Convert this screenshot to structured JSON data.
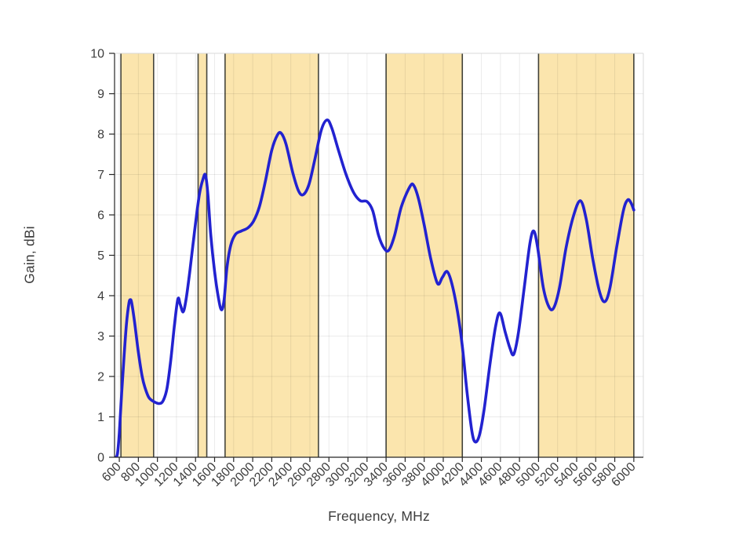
{
  "figure": {
    "xlabel": "Frequency, MHz",
    "ylabel": "Gain, dBi"
  },
  "chart_data": {
    "type": "line",
    "title": "",
    "xlabel": "Frequency, MHz",
    "ylabel": "Gain, dBi",
    "xlim": [
      550,
      6100
    ],
    "ylim": [
      0,
      10
    ],
    "grid": true,
    "legend_position": "none",
    "xticks": [
      600,
      800,
      1000,
      1200,
      1400,
      1600,
      1800,
      2000,
      2200,
      2400,
      2600,
      2800,
      3000,
      3200,
      3400,
      3600,
      3800,
      4000,
      4200,
      4400,
      4600,
      4800,
      5000,
      5200,
      5400,
      5600,
      5800,
      6000
    ],
    "yticks": [
      0,
      1,
      2,
      3,
      4,
      5,
      6,
      7,
      8,
      9,
      10
    ],
    "bands": [
      {
        "name": "band-617-960",
        "from": 617,
        "to": 960
      },
      {
        "name": "band-1427-1518",
        "from": 1427,
        "to": 1518
      },
      {
        "name": "band-1710-2690",
        "from": 1710,
        "to": 2690
      },
      {
        "name": "band-3400-4200",
        "from": 3400,
        "to": 4200
      },
      {
        "name": "band-5000-6000",
        "from": 5000,
        "to": 6000
      }
    ],
    "series": [
      {
        "name": "gain",
        "points": [
          [
            560,
            0.0
          ],
          [
            580,
            0.08
          ],
          [
            600,
            0.6
          ],
          [
            625,
            1.6
          ],
          [
            650,
            2.5
          ],
          [
            675,
            3.3
          ],
          [
            700,
            3.8
          ],
          [
            715,
            3.9
          ],
          [
            730,
            3.82
          ],
          [
            760,
            3.35
          ],
          [
            800,
            2.6
          ],
          [
            840,
            2.0
          ],
          [
            870,
            1.72
          ],
          [
            910,
            1.48
          ],
          [
            960,
            1.38
          ],
          [
            1020,
            1.33
          ],
          [
            1060,
            1.4
          ],
          [
            1100,
            1.7
          ],
          [
            1140,
            2.4
          ],
          [
            1180,
            3.3
          ],
          [
            1215,
            3.92
          ],
          [
            1240,
            3.78
          ],
          [
            1270,
            3.6
          ],
          [
            1300,
            3.9
          ],
          [
            1340,
            4.6
          ],
          [
            1390,
            5.6
          ],
          [
            1440,
            6.5
          ],
          [
            1480,
            6.9
          ],
          [
            1505,
            6.98
          ],
          [
            1530,
            6.5
          ],
          [
            1560,
            5.5
          ],
          [
            1600,
            4.6
          ],
          [
            1640,
            3.95
          ],
          [
            1672,
            3.65
          ],
          [
            1700,
            3.9
          ],
          [
            1730,
            4.7
          ],
          [
            1770,
            5.25
          ],
          [
            1820,
            5.52
          ],
          [
            1880,
            5.6
          ],
          [
            1950,
            5.68
          ],
          [
            2010,
            5.85
          ],
          [
            2070,
            6.2
          ],
          [
            2130,
            6.8
          ],
          [
            2200,
            7.6
          ],
          [
            2260,
            7.98
          ],
          [
            2300,
            8.02
          ],
          [
            2350,
            7.75
          ],
          [
            2420,
            7.05
          ],
          [
            2480,
            6.6
          ],
          [
            2530,
            6.5
          ],
          [
            2590,
            6.75
          ],
          [
            2650,
            7.35
          ],
          [
            2720,
            8.1
          ],
          [
            2780,
            8.35
          ],
          [
            2830,
            8.15
          ],
          [
            2900,
            7.6
          ],
          [
            2980,
            7.0
          ],
          [
            3060,
            6.55
          ],
          [
            3130,
            6.35
          ],
          [
            3200,
            6.33
          ],
          [
            3260,
            6.1
          ],
          [
            3320,
            5.5
          ],
          [
            3380,
            5.17
          ],
          [
            3430,
            5.13
          ],
          [
            3490,
            5.5
          ],
          [
            3560,
            6.2
          ],
          [
            3650,
            6.7
          ],
          [
            3690,
            6.73
          ],
          [
            3740,
            6.4
          ],
          [
            3800,
            5.75
          ],
          [
            3870,
            4.9
          ],
          [
            3940,
            4.3
          ],
          [
            3990,
            4.45
          ],
          [
            4040,
            4.6
          ],
          [
            4090,
            4.3
          ],
          [
            4150,
            3.6
          ],
          [
            4200,
            2.75
          ],
          [
            4250,
            1.6
          ],
          [
            4300,
            0.65
          ],
          [
            4335,
            0.38
          ],
          [
            4380,
            0.55
          ],
          [
            4430,
            1.2
          ],
          [
            4490,
            2.3
          ],
          [
            4550,
            3.25
          ],
          [
            4595,
            3.57
          ],
          [
            4650,
            3.1
          ],
          [
            4700,
            2.7
          ],
          [
            4740,
            2.55
          ],
          [
            4790,
            3.1
          ],
          [
            4850,
            4.2
          ],
          [
            4910,
            5.3
          ],
          [
            4950,
            5.6
          ],
          [
            4990,
            5.2
          ],
          [
            5050,
            4.2
          ],
          [
            5110,
            3.72
          ],
          [
            5160,
            3.7
          ],
          [
            5220,
            4.2
          ],
          [
            5290,
            5.2
          ],
          [
            5370,
            6.0
          ],
          [
            5440,
            6.35
          ],
          [
            5500,
            5.9
          ],
          [
            5570,
            4.9
          ],
          [
            5640,
            4.1
          ],
          [
            5695,
            3.85
          ],
          [
            5750,
            4.2
          ],
          [
            5820,
            5.2
          ],
          [
            5890,
            6.1
          ],
          [
            5935,
            6.37
          ],
          [
            5970,
            6.3
          ],
          [
            6000,
            6.12
          ]
        ]
      }
    ],
    "colors": {
      "curve": "#2222d0",
      "band_fill": "#fbe5ad",
      "band_edge": "#45453c",
      "grid": "#000000",
      "grid_alpha": 0.08,
      "axis": "#262626",
      "frame_light": "#d9d9d9",
      "tick_text": "#3d3d3d"
    }
  }
}
